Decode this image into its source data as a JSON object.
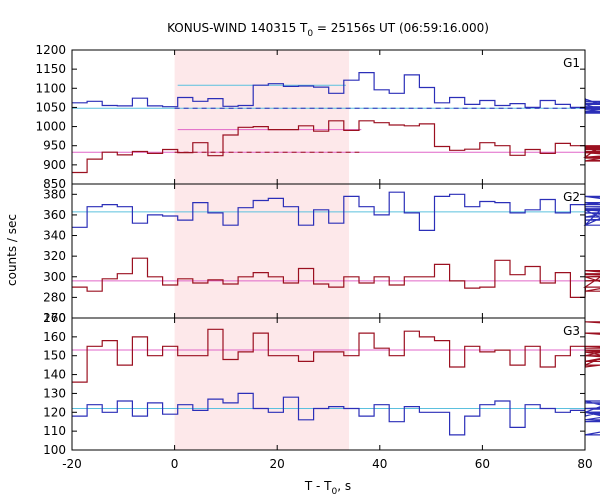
{
  "title": {
    "prefix": "KONUS-WIND 140315 T",
    "subscript": "0",
    "suffix": " = 25156s UT (06:59:16.000)"
  },
  "chart_data": {
    "type": "line",
    "x_range": [
      -20,
      80
    ],
    "x_ticks": [
      -20,
      0,
      20,
      40,
      60,
      80
    ],
    "x_label": {
      "main": "T - T",
      "sub": "0",
      "tail": ", s"
    },
    "y_label": "counts / sec",
    "shaded_interval": [
      0,
      34
    ],
    "shade_color": "#fde8ea",
    "panels": [
      {
        "id": "G1",
        "label": "G1",
        "ylim": [
          850,
          1200
        ],
        "yticks": [
          850,
          900,
          950,
          1000,
          1050,
          1100,
          1150,
          1200
        ],
        "series": [
          {
            "color": "#2b2fb8",
            "bin_width": 2.944,
            "x_start": -20,
            "values": [
              1062,
              1066,
              1055,
              1054,
              1074,
              1054,
              1052,
              1076,
              1066,
              1073,
              1053,
              1055,
              1108,
              1112,
              1105,
              1106,
              1103,
              1087,
              1121,
              1141,
              1096,
              1087,
              1135,
              1102,
              1062,
              1076,
              1058,
              1068,
              1055,
              1060,
              1050,
              1068,
              1058,
              1050,
              1072,
              1058,
              1035,
              1040,
              1061,
              1060,
              1048,
              1066,
              1052,
              1038,
              1052,
              1040,
              1045,
              1050
            ]
          },
          {
            "color": "#9b1020",
            "bin_width": 2.944,
            "x_start": -20,
            "values": [
              880,
              915,
              933,
              926,
              935,
              930,
              940,
              932,
              958,
              924,
              978,
              998,
              1000,
              992,
              992,
              1002,
              988,
              1015,
              990,
              1015,
              1010,
              1004,
              1002,
              1007,
              948,
              938,
              941,
              958,
              950,
              925,
              940,
              930,
              956,
              950,
              920,
              948,
              910,
              932,
              920,
              935,
              943,
              932,
              918,
              910,
              932,
              940,
              945,
              950
            ]
          }
        ],
        "fits": [
          {
            "color": "#5bc0de",
            "segments": [
              {
                "x": [
                  -20,
                  80
                ],
                "y": 1048
              }
            ]
          },
          {
            "color": "#5bc0de",
            "segments": [
              {
                "x": [
                  0.6,
                  33.4
                ],
                "y": 1108
              }
            ]
          },
          {
            "color": "#2b2fb8",
            "dashed": true,
            "segments": [
              {
                "x": [
                  0,
                  80
                ],
                "y": 1048
              }
            ]
          },
          {
            "color": "#e066c8",
            "segments": [
              {
                "x": [
                  -20,
                  80
                ],
                "y": 933
              }
            ]
          },
          {
            "color": "#e066c8",
            "segments": [
              {
                "x": [
                  0.6,
                  36.4
                ],
                "y": 992
              }
            ]
          },
          {
            "color": "#9b1020",
            "dashed": true,
            "segments": [
              {
                "x": [
                  0,
                  36
                ],
                "y": 933
              }
            ]
          }
        ]
      },
      {
        "id": "G2",
        "label": "G2",
        "ylim": [
          260,
          390
        ],
        "yticks": [
          260,
          280,
          300,
          320,
          340,
          360,
          380
        ],
        "series": [
          {
            "color": "#2b2fb8",
            "bin_width": 2.944,
            "x_start": -20,
            "values": [
              348,
              368,
              370,
              368,
              352,
              360,
              359,
              355,
              372,
              362,
              350,
              367,
              374,
              376,
              368,
              350,
              365,
              352,
              378,
              368,
              360,
              382,
              362,
              345,
              378,
              380,
              368,
              373,
              372,
              362,
              365,
              375,
              362,
              370,
              350,
              365,
              350,
              370,
              378,
              368,
              366,
              362,
              358,
              378,
              372,
              355,
              365,
              350
            ]
          },
          {
            "color": "#9b1020",
            "bin_width": 2.944,
            "x_start": -20,
            "values": [
              290,
              286,
              298,
              303,
              318,
              300,
              292,
              298,
              294,
              297,
              293,
              300,
              304,
              300,
              294,
              308,
              293,
              290,
              300,
              294,
              300,
              292,
              300,
              300,
              312,
              296,
              289,
              290,
              316,
              302,
              310,
              294,
              304,
              280,
              290,
              300,
              300,
              286,
              296,
              300,
              302,
              303,
              302,
              300,
              300,
              300,
              306,
              290
            ]
          }
        ],
        "fits": [
          {
            "color": "#5bc0de",
            "segments": [
              {
                "x": [
                  -20,
                  80
                ],
                "y": 363
              }
            ]
          },
          {
            "color": "#e066c8",
            "segments": [
              {
                "x": [
                  -20,
                  80
                ],
                "y": 296
              }
            ]
          }
        ]
      },
      {
        "id": "G3",
        "label": "G3",
        "ylim": [
          100,
          170
        ],
        "yticks": [
          100,
          110,
          120,
          130,
          140,
          150,
          160,
          170
        ],
        "series": [
          {
            "color": "#2b2fb8",
            "bin_width": 2.944,
            "x_start": -20,
            "values": [
              118,
              124,
              120,
              126,
              118,
              125,
              119,
              124,
              121,
              127,
              125,
              130,
              122,
              120,
              128,
              116,
              122,
              123,
              122,
              118,
              124,
              115,
              123,
              120,
              120,
              108,
              118,
              124,
              126,
              112,
              124,
              122,
              120,
              121,
              118,
              120,
              126,
              120,
              116,
              122,
              120,
              108,
              120,
              115,
              120,
              122,
              125,
              122
            ]
          },
          {
            "color": "#9b1020",
            "bin_width": 2.944,
            "x_start": -20,
            "values": [
              136,
              155,
              158,
              145,
              160,
              150,
              155,
              150,
              150,
              164,
              148,
              152,
              162,
              150,
              150,
              147,
              152,
              152,
              150,
              162,
              154,
              150,
              163,
              160,
              158,
              144,
              155,
              152,
              153,
              145,
              155,
              144,
              150,
              155,
              144,
              145,
              152,
              147,
              153,
              150,
              147,
              155,
              152,
              150,
              150,
              168,
              162,
              154
            ]
          }
        ],
        "fits": [
          {
            "color": "#5bc0de",
            "segments": [
              {
                "x": [
                  -20,
                  80
                ],
                "y": 122
              }
            ]
          },
          {
            "color": "#e066c8",
            "segments": [
              {
                "x": [
                  -20,
                  80
                ],
                "y": 153
              }
            ]
          }
        ]
      }
    ]
  }
}
